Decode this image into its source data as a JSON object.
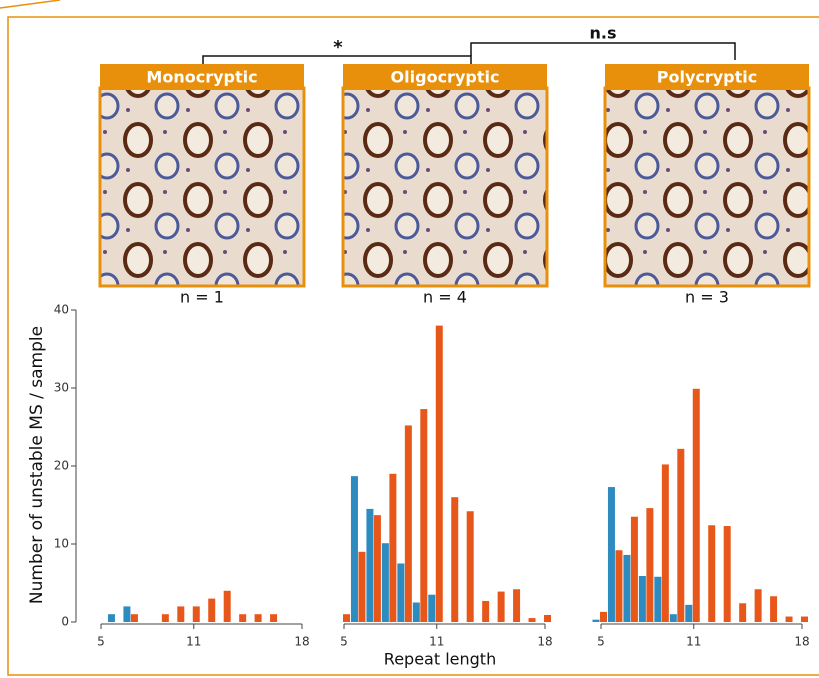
{
  "figure": {
    "ylabel": "Number of unstable MS / sample",
    "xlabel": "Repeat length",
    "comparisons": [
      {
        "label": "*"
      },
      {
        "label": "n.s"
      }
    ]
  },
  "chart_data": [
    {
      "type": "bar",
      "title": "Monocryptic",
      "subtitle": "n = 1",
      "x": [
        5,
        6,
        7,
        8,
        9,
        10,
        11,
        12,
        13,
        14,
        15,
        16,
        17,
        18
      ],
      "xlim": [
        5,
        18
      ],
      "xticks": [
        5,
        11,
        18
      ],
      "ylim": [
        0,
        40
      ],
      "yticks": [
        0,
        10,
        20,
        30,
        40
      ],
      "series": [
        {
          "color": "#2e8bc0",
          "values": [
            null,
            1,
            2,
            null,
            null,
            null,
            null,
            null,
            null,
            null,
            null,
            null,
            null,
            null
          ]
        },
        {
          "color": "#e8571a",
          "values": [
            null,
            null,
            1,
            null,
            1,
            2,
            2,
            3,
            4,
            1,
            1,
            1,
            null,
            null
          ]
        }
      ]
    },
    {
      "type": "bar",
      "title": "Oligocryptic",
      "subtitle": "n = 4",
      "x": [
        5,
        6,
        7,
        8,
        9,
        10,
        11,
        12,
        13,
        14,
        15,
        16,
        17,
        18
      ],
      "xlim": [
        5,
        18
      ],
      "xticks": [
        5,
        11,
        18
      ],
      "ylim": [
        0,
        40
      ],
      "series": [
        {
          "color": "#2e8bc0",
          "values": [
            null,
            18.7,
            14.5,
            10.1,
            7.5,
            2.5,
            3.5,
            null,
            null,
            null,
            null,
            null,
            null,
            null
          ]
        },
        {
          "color": "#e8571a",
          "values": [
            1,
            9,
            13.7,
            19,
            25.2,
            27.3,
            38,
            16,
            14.2,
            2.7,
            3.9,
            4.2,
            0.5,
            0.9
          ]
        }
      ]
    },
    {
      "type": "bar",
      "title": "Polycryptic",
      "subtitle": "n = 3",
      "x": [
        5,
        6,
        7,
        8,
        9,
        10,
        11,
        12,
        13,
        14,
        15,
        16,
        17,
        18
      ],
      "xlim": [
        5,
        18
      ],
      "xticks": [
        5,
        11,
        18
      ],
      "ylim": [
        0,
        40
      ],
      "series": [
        {
          "color": "#2e8bc0",
          "values": [
            0.3,
            17.3,
            8.6,
            5.9,
            5.8,
            1,
            2.2,
            null,
            null,
            null,
            null,
            null,
            null,
            null
          ]
        },
        {
          "color": "#e8571a",
          "values": [
            1.3,
            9.2,
            13.5,
            14.6,
            20.2,
            22.2,
            29.9,
            12.4,
            12.3,
            2.4,
            4.2,
            3.3,
            0.7,
            0.7
          ]
        }
      ]
    }
  ]
}
